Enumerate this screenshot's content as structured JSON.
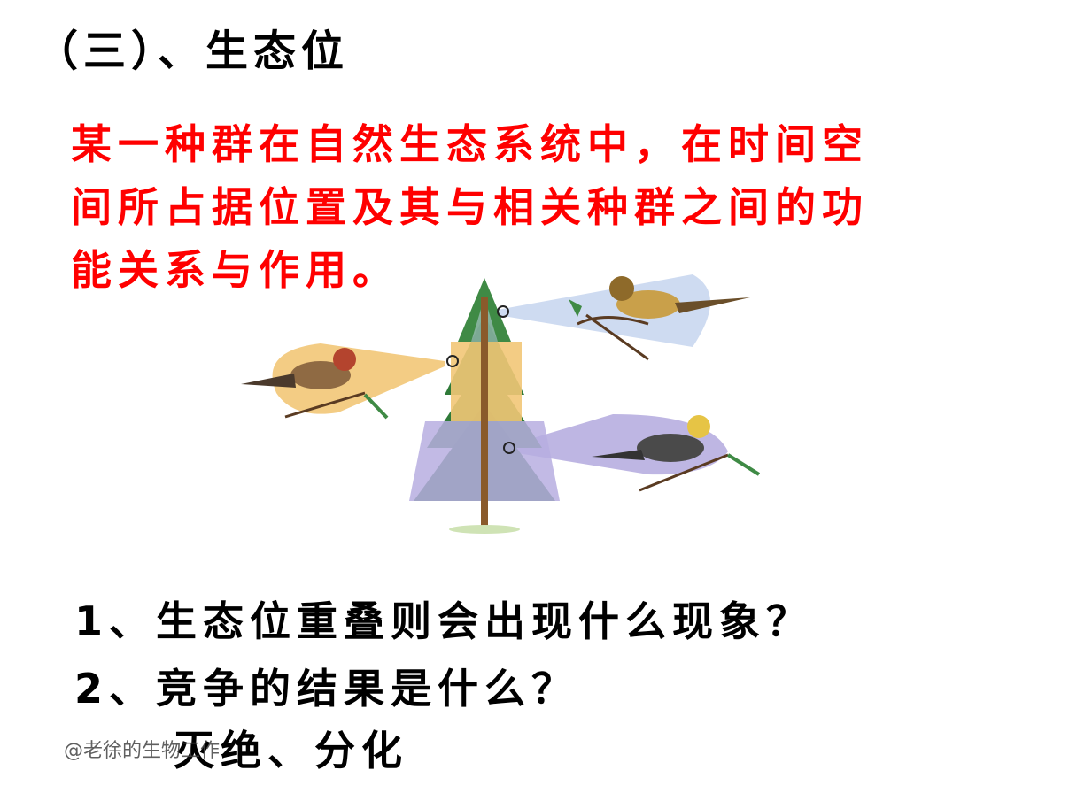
{
  "slide": {
    "title": "（三）、生态位",
    "definition_lines": [
      "某一种群在自然生态系统中，在时间空",
      "间所占据位置及其与相关种群之间的功",
      "能关系与作用。"
    ],
    "questions": [
      "1、生态位重叠则会出现什么现象？",
      "2、竞争的结果是什么？"
    ],
    "answer": "灭绝、分化",
    "watermark": "@老徐的生物工作"
  },
  "figure": {
    "colors": {
      "top_zone": "#c9d7ef",
      "middle_zone": "#f2c777",
      "bottom_zone": "#b7aee0",
      "tree": "#2f7a38",
      "trunk": "#8a5a2b"
    }
  }
}
